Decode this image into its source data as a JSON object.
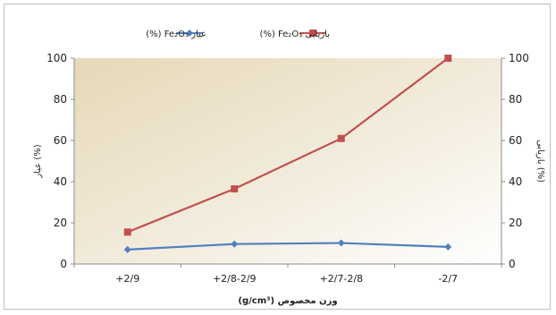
{
  "chart_data": {
    "type": "line",
    "categories": [
      "+2/9",
      "+2/8-2/9",
      "+2/7-2/8",
      "-2/7"
    ],
    "series": [
      {
        "name": "عیار Fe₂O₃ (%)",
        "values": [
          7,
          9.7,
          10.2,
          8.3
        ],
        "color": "#4f81bd",
        "marker": "diamond"
      },
      {
        "name": "بازیابی Fe₂O₃ (%)",
        "values": [
          15.5,
          36.5,
          61,
          100
        ],
        "color": "#c0504d",
        "marker": "square"
      }
    ],
    "xlabel": "وزن مخصوص (g/cm³)",
    "ylabel_left": "عیار (%)",
    "ylabel_right": "بازیابی (%)",
    "ylim": [
      0,
      100
    ],
    "yticks": [
      0,
      20,
      40,
      60,
      80,
      100
    ],
    "legend_position": "top",
    "grid": false
  }
}
